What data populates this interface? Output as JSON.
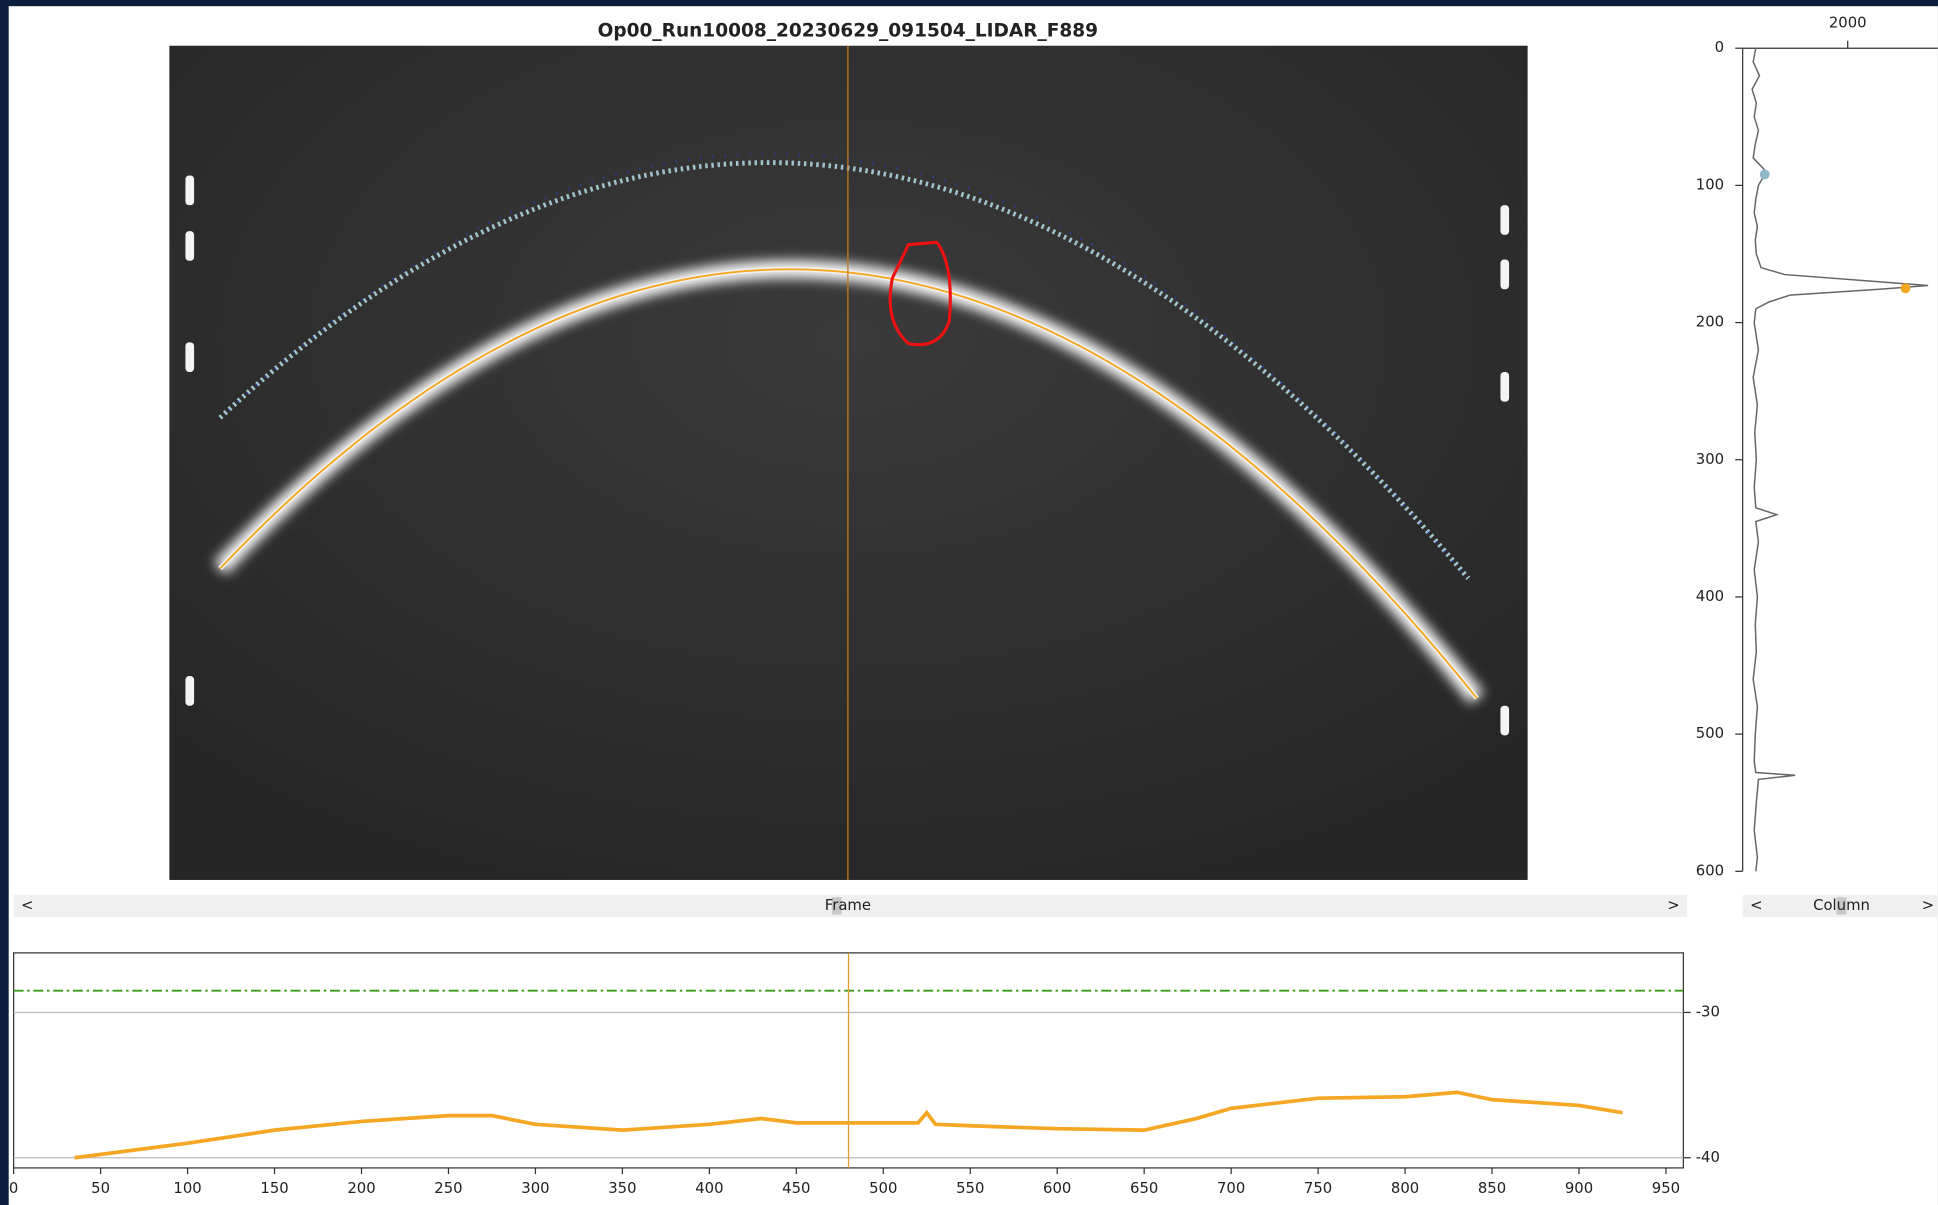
{
  "image_title": "Op00_Run10008_20230629_091504_LIDAR_F889",
  "scrollbars": {
    "frame": "Frame",
    "column": "Column"
  },
  "chart_data": [
    {
      "type": "line",
      "orientation": "vertical",
      "x": [
        0,
        10,
        20,
        30,
        40,
        50,
        60,
        70,
        80,
        90,
        100,
        110,
        120,
        130,
        140,
        150,
        160,
        165,
        170,
        173,
        176,
        180,
        185,
        190,
        200,
        220,
        240,
        260,
        280,
        300,
        320,
        335,
        340,
        345,
        360,
        380,
        400,
        420,
        440,
        460,
        480,
        500,
        520,
        528,
        530,
        533,
        550,
        570,
        590,
        600
      ],
      "xlim": [
        0,
        600
      ],
      "xticks": [
        0,
        100,
        200,
        300,
        400,
        500,
        600
      ],
      "ylim": [
        0,
        3718
      ],
      "yticks": [
        2000
      ],
      "series": [
        {
          "color": "#666666",
          "values": [
            250,
            200,
            320,
            180,
            260,
            220,
            300,
            240,
            200,
            450,
            300,
            250,
            220,
            280,
            240,
            260,
            350,
            800,
            2500,
            3530,
            2500,
            900,
            500,
            250,
            220,
            300,
            200,
            280,
            230,
            260,
            220,
            250,
            650,
            250,
            300,
            220,
            280,
            240,
            260,
            200,
            280,
            240,
            220,
            250,
            1000,
            300,
            260,
            220,
            280,
            250
          ]
        }
      ],
      "markers": [
        {
          "x": 92,
          "value": 420,
          "color": "#8fb8c8"
        },
        {
          "x": 175,
          "value": 3100,
          "color": "#f5a623"
        }
      ]
    },
    {
      "type": "line",
      "x": [
        35,
        100,
        150,
        200,
        250,
        275,
        300,
        350,
        400,
        430,
        450,
        500,
        520,
        525,
        530,
        550,
        600,
        650,
        680,
        700,
        750,
        800,
        830,
        850,
        900,
        925
      ],
      "xlim": [
        0,
        960
      ],
      "xticks": [
        0,
        50,
        100,
        150,
        200,
        250,
        300,
        350,
        400,
        450,
        500,
        550,
        600,
        650,
        700,
        750,
        800,
        850,
        900,
        950
      ],
      "ylim": [
        -40.7,
        -25.9
      ],
      "yticks": [
        -30,
        -40
      ],
      "series": [
        {
          "color": "#f5a623",
          "values": [
            -40,
            -39,
            -38.1,
            -37.5,
            -37.1,
            -37.1,
            -37.7,
            -38.1,
            -37.7,
            -37.3,
            -37.6,
            -37.6,
            -37.6,
            -36.9,
            -37.7,
            -37.8,
            -38,
            -38.1,
            -37.3,
            -36.6,
            -35.9,
            -35.8,
            -35.5,
            -36,
            -36.4,
            -36.9
          ]
        }
      ],
      "reference_line": {
        "value": -28.5,
        "color": "#3a9a1a"
      },
      "cursor_x": 480
    }
  ]
}
